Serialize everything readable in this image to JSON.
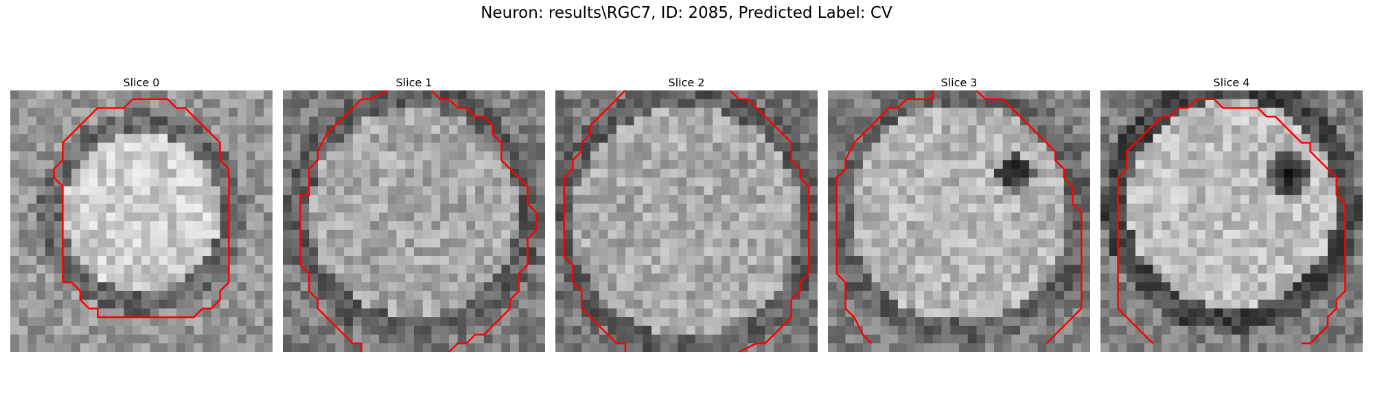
{
  "figure": {
    "title": "Neuron: results\\RGC7, ID: 2085, Predicted Label: CV",
    "contour_color": "#ff0000",
    "colormap": "gray"
  },
  "panels": [
    {
      "title": "Slice 0"
    },
    {
      "title": "Slice 1"
    },
    {
      "title": "Slice 2"
    },
    {
      "title": "Slice 3"
    },
    {
      "title": "Slice 4"
    }
  ]
}
